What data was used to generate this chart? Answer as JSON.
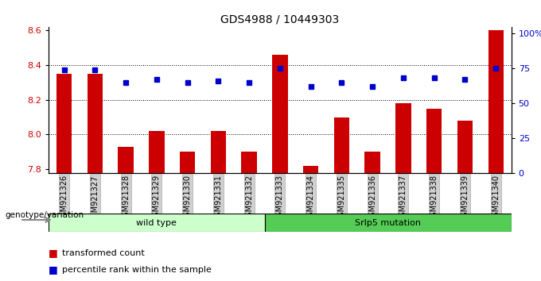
{
  "title": "GDS4988 / 10449303",
  "samples": [
    "GSM921326",
    "GSM921327",
    "GSM921328",
    "GSM921329",
    "GSM921330",
    "GSM921331",
    "GSM921332",
    "GSM921333",
    "GSM921334",
    "GSM921335",
    "GSM921336",
    "GSM921337",
    "GSM921338",
    "GSM921339",
    "GSM921340"
  ],
  "bar_values": [
    8.35,
    8.35,
    7.93,
    8.02,
    7.9,
    8.02,
    7.9,
    8.46,
    7.82,
    8.1,
    7.9,
    8.18,
    8.15,
    8.08,
    8.6
  ],
  "percentile_values": [
    74,
    74,
    65,
    67,
    65,
    66,
    65,
    75,
    62,
    65,
    62,
    68,
    68,
    67,
    75
  ],
  "bar_color": "#cc0000",
  "percentile_color": "#0000cc",
  "ylim_left": [
    7.78,
    8.62
  ],
  "ylim_right": [
    0,
    105
  ],
  "yticks_left": [
    7.8,
    8.0,
    8.2,
    8.4,
    8.6
  ],
  "yticks_right": [
    0,
    25,
    50,
    75,
    100
  ],
  "ytick_labels_right": [
    "0",
    "25",
    "50",
    "75",
    "100%"
  ],
  "grid_values": [
    8.0,
    8.2,
    8.4
  ],
  "wild_type_count": 7,
  "group1_label": "wild type",
  "group2_label": "Srlp5 mutation",
  "group1_color": "#ccffcc",
  "group2_color": "#55cc55",
  "legend_bar_label": "transformed count",
  "legend_pct_label": "percentile rank within the sample",
  "genotype_label": "genotype/variation",
  "bar_bottom": 7.78
}
